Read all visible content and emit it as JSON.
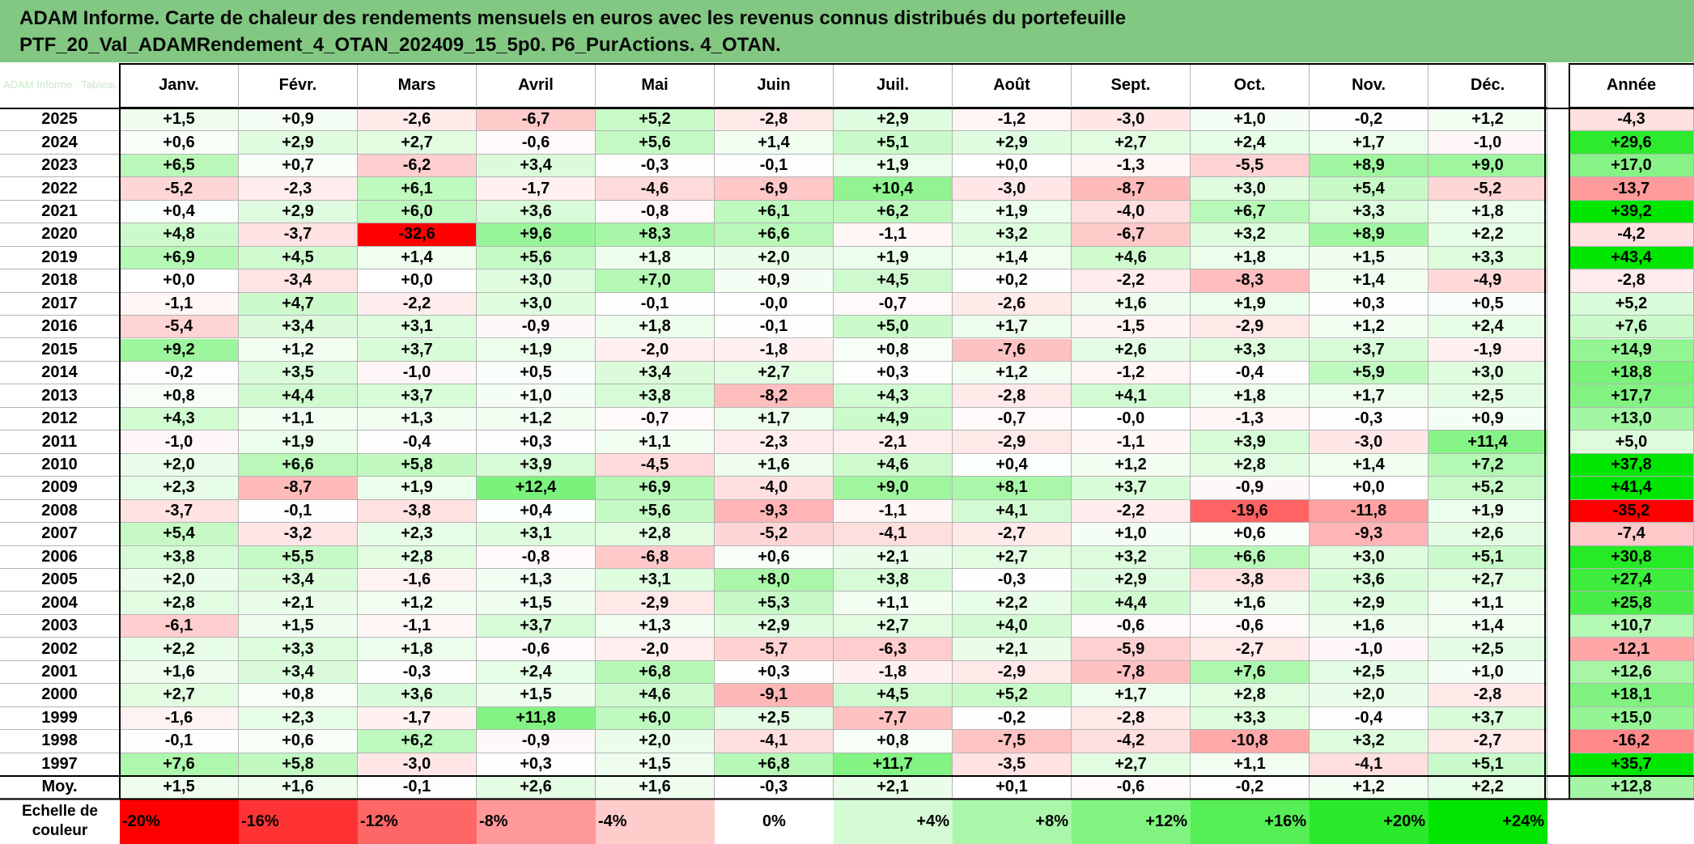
{
  "title_lines": [
    "ADAM Informe. Carte de chaleur des rendements mensuels en euros avec les revenus connus distribués du portefeuille",
    "PTF_20_Val_ADAMRendement_4_OTAN_202409_15_5p0. P6_PurActions. 4_OTAN."
  ],
  "watermark": "ADAM Informe · Tableau",
  "chart_data": {
    "type": "heatmap",
    "title": "ADAM Informe. Carte de chaleur des rendements mensuels en euros avec les revenus connus distribués du portefeuille PTF_20_Val_ADAMRendement_4_OTAN_202409_15_5p0. P6_PurActions. 4_OTAN.",
    "columns": [
      "Janv.",
      "Févr.",
      "Mars",
      "Avril",
      "Mai",
      "Juin",
      "Juil.",
      "Août",
      "Sept.",
      "Oct.",
      "Nov.",
      "Déc."
    ],
    "year_column_label": "Année",
    "rows": [
      {
        "year": "2025",
        "values": [
          1.5,
          0.9,
          -2.6,
          -6.7,
          5.2,
          -2.8,
          2.9,
          -1.2,
          -3.0,
          1.0,
          -0.2,
          1.2
        ],
        "annual": -4.3
      },
      {
        "year": "2024",
        "values": [
          0.6,
          2.9,
          2.7,
          -0.6,
          5.6,
          1.4,
          5.1,
          2.9,
          2.7,
          2.4,
          1.7,
          -1.0
        ],
        "annual": 29.6
      },
      {
        "year": "2023",
        "values": [
          6.5,
          0.7,
          -6.2,
          3.4,
          -0.3,
          -0.1,
          1.9,
          0.0,
          -1.3,
          -5.5,
          8.9,
          9.0
        ],
        "annual": 17.0
      },
      {
        "year": "2022",
        "values": [
          -5.2,
          -2.3,
          6.1,
          -1.7,
          -4.6,
          -6.9,
          10.4,
          -3.0,
          -8.7,
          3.0,
          5.4,
          -5.2
        ],
        "annual": -13.7
      },
      {
        "year": "2021",
        "values": [
          0.4,
          2.9,
          6.0,
          3.6,
          -0.8,
          6.1,
          6.2,
          1.9,
          -4.0,
          6.7,
          3.3,
          1.8
        ],
        "annual": 39.2
      },
      {
        "year": "2020",
        "values": [
          4.8,
          -3.7,
          -32.6,
          9.6,
          8.3,
          6.6,
          -1.1,
          3.2,
          -6.7,
          3.2,
          8.9,
          2.2
        ],
        "annual": -4.2
      },
      {
        "year": "2019",
        "values": [
          6.9,
          4.5,
          1.4,
          5.6,
          1.8,
          2.0,
          1.9,
          1.4,
          4.6,
          1.8,
          1.5,
          3.3
        ],
        "annual": 43.4
      },
      {
        "year": "2018",
        "values": [
          0.0,
          -3.4,
          0.0,
          3.0,
          7.0,
          0.9,
          4.5,
          0.2,
          -2.2,
          -8.3,
          1.4,
          -4.9
        ],
        "annual": -2.8
      },
      {
        "year": "2017",
        "values": [
          -1.1,
          4.7,
          -2.2,
          3.0,
          -0.1,
          -0.0,
          -0.7,
          -2.6,
          1.6,
          1.9,
          0.3,
          0.5
        ],
        "annual": 5.2
      },
      {
        "year": "2016",
        "values": [
          -5.4,
          3.4,
          3.1,
          -0.9,
          1.8,
          -0.1,
          5.0,
          1.7,
          -1.5,
          -2.9,
          1.2,
          2.4
        ],
        "annual": 7.6
      },
      {
        "year": "2015",
        "values": [
          9.2,
          1.2,
          3.7,
          1.9,
          -2.0,
          -1.8,
          0.8,
          -7.6,
          2.6,
          3.3,
          3.7,
          -1.9
        ],
        "annual": 14.9
      },
      {
        "year": "2014",
        "values": [
          -0.2,
          3.5,
          -1.0,
          0.5,
          3.4,
          2.7,
          0.3,
          1.2,
          -1.2,
          -0.4,
          5.9,
          3.0
        ],
        "annual": 18.8
      },
      {
        "year": "2013",
        "values": [
          0.8,
          4.4,
          3.7,
          1.0,
          3.8,
          -8.2,
          4.3,
          -2.8,
          4.1,
          1.8,
          1.7,
          2.5
        ],
        "annual": 17.7
      },
      {
        "year": "2012",
        "values": [
          4.3,
          1.1,
          1.3,
          1.2,
          -0.7,
          1.7,
          4.9,
          -0.7,
          -0.0,
          -1.3,
          -0.3,
          0.9
        ],
        "annual": 13.0
      },
      {
        "year": "2011",
        "values": [
          -1.0,
          1.9,
          -0.4,
          0.3,
          1.1,
          -2.3,
          -2.1,
          -2.9,
          -1.1,
          3.9,
          -3.0,
          11.4
        ],
        "annual": 5.0
      },
      {
        "year": "2010",
        "values": [
          2.0,
          6.6,
          5.8,
          3.9,
          -4.5,
          1.6,
          4.6,
          0.4,
          1.2,
          2.8,
          1.4,
          7.2
        ],
        "annual": 37.8
      },
      {
        "year": "2009",
        "values": [
          2.3,
          -8.7,
          1.9,
          12.4,
          6.9,
          -4.0,
          9.0,
          8.1,
          3.7,
          -0.9,
          0.0,
          5.2
        ],
        "annual": 41.4
      },
      {
        "year": "2008",
        "values": [
          -3.7,
          -0.1,
          -3.8,
          0.4,
          5.6,
          -9.3,
          -1.1,
          4.1,
          -2.2,
          -19.6,
          -11.8,
          1.9
        ],
        "annual": -35.2
      },
      {
        "year": "2007",
        "values": [
          5.4,
          -3.2,
          2.3,
          3.1,
          2.8,
          -5.2,
          -4.1,
          -2.7,
          1.0,
          0.6,
          -9.3,
          2.6
        ],
        "annual": -7.4
      },
      {
        "year": "2006",
        "values": [
          3.8,
          5.5,
          2.8,
          -0.8,
          -6.8,
          0.6,
          2.1,
          2.7,
          3.2,
          6.6,
          3.0,
          5.1
        ],
        "annual": 30.8
      },
      {
        "year": "2005",
        "values": [
          2.0,
          3.4,
          -1.6,
          1.3,
          3.1,
          8.0,
          3.8,
          -0.3,
          2.9,
          -3.8,
          3.6,
          2.7
        ],
        "annual": 27.4
      },
      {
        "year": "2004",
        "values": [
          2.8,
          2.1,
          1.2,
          1.5,
          -2.9,
          5.3,
          1.1,
          2.2,
          4.4,
          1.6,
          2.9,
          1.1
        ],
        "annual": 25.8
      },
      {
        "year": "2003",
        "values": [
          -6.1,
          1.5,
          -1.1,
          3.7,
          1.3,
          2.9,
          2.7,
          4.0,
          -0.6,
          -0.6,
          1.6,
          1.4
        ],
        "annual": 10.7
      },
      {
        "year": "2002",
        "values": [
          2.2,
          3.3,
          1.8,
          -0.6,
          -2.0,
          -5.7,
          -6.3,
          2.1,
          -5.9,
          -2.7,
          -1.0,
          2.5
        ],
        "annual": -12.1
      },
      {
        "year": "2001",
        "values": [
          1.6,
          3.4,
          -0.3,
          2.4,
          6.8,
          0.3,
          -1.8,
          -2.9,
          -7.8,
          7.6,
          2.5,
          1.0
        ],
        "annual": 12.6
      },
      {
        "year": "2000",
        "values": [
          2.7,
          0.8,
          3.6,
          1.5,
          4.6,
          -9.1,
          4.5,
          5.2,
          1.7,
          2.8,
          2.0,
          -2.8
        ],
        "annual": 18.1
      },
      {
        "year": "1999",
        "values": [
          -1.6,
          2.3,
          -1.7,
          11.8,
          6.0,
          2.5,
          -7.7,
          -0.2,
          -2.8,
          3.3,
          -0.4,
          3.7
        ],
        "annual": 15.0
      },
      {
        "year": "1998",
        "values": [
          -0.1,
          0.6,
          6.2,
          -0.9,
          2.0,
          -4.1,
          0.8,
          -7.5,
          -4.2,
          -10.8,
          3.2,
          -2.7
        ],
        "annual": -16.2
      },
      {
        "year": "1997",
        "values": [
          7.6,
          5.8,
          -3.0,
          0.3,
          1.5,
          6.8,
          11.7,
          -3.5,
          2.7,
          1.1,
          -4.1,
          5.1
        ],
        "annual": 35.7
      }
    ],
    "average_row": {
      "label": "Moy.",
      "values": [
        1.5,
        1.6,
        -0.1,
        2.6,
        1.6,
        -0.3,
        2.1,
        0.1,
        -0.6,
        -0.2,
        1.2,
        2.2
      ],
      "annual": 12.8
    },
    "scale": {
      "label_lines": [
        "Echelle de",
        "couleur"
      ],
      "stops": [
        "-20%",
        "-16%",
        "-12%",
        "-8%",
        "-4%",
        "0%",
        "+4%",
        "+8%",
        "+12%",
        "+16%",
        "+20%",
        "+24%"
      ],
      "stop_values": [
        -20,
        -16,
        -12,
        -8,
        -4,
        0,
        4,
        8,
        12,
        16,
        20,
        24
      ]
    },
    "colors": {
      "negative": "#ff0000",
      "positive": "#00e600",
      "neutral": "#ffffff",
      "title_bg": "#82c882"
    }
  }
}
